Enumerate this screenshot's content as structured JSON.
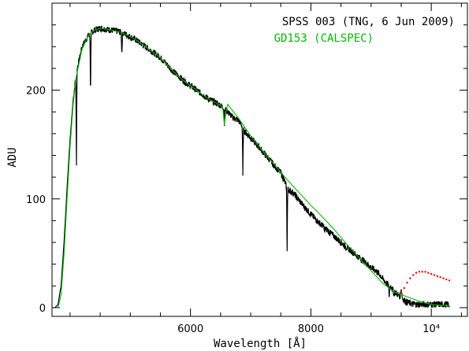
{
  "chart_data": {
    "type": "line",
    "xlabel": "Wavelength [Å]",
    "ylabel": "ADU",
    "xlim": [
      3700,
      10600
    ],
    "ylim": [
      -8,
      280
    ],
    "x_ticks": [
      {
        "value": 6000,
        "label": "6000"
      },
      {
        "value": 8000,
        "label": "8000"
      },
      {
        "value": 10000,
        "label": "10⁴"
      }
    ],
    "y_ticks": [
      {
        "value": 0,
        "label": "0"
      },
      {
        "value": 100,
        "label": "100"
      },
      {
        "value": 200,
        "label": "200"
      }
    ],
    "grid": false,
    "legend_position": "top-right",
    "series": [
      {
        "name": "SPSS 003 (TNG, 6 Jun 2009)",
        "color": "#000000",
        "style": "line",
        "x": [
          3750,
          3800,
          3850,
          3900,
          3950,
          4000,
          4050,
          4100,
          4200,
          4300,
          4400,
          4500,
          4600,
          4700,
          4800,
          4900,
          5000,
          5100,
          5200,
          5300,
          5400,
          5500,
          5600,
          5700,
          5800,
          5900,
          6000,
          6100,
          6200,
          6300,
          6400,
          6500,
          6520,
          6540,
          6563,
          6585,
          6600,
          6620,
          6650,
          6700,
          6800,
          6850,
          6870,
          6880,
          6890,
          6900,
          6950,
          7000,
          7100,
          7200,
          7250,
          7300,
          7400,
          7500,
          7550,
          7590,
          7605,
          7620,
          7640,
          7660,
          7700,
          7800,
          7900,
          8000,
          8100,
          8200,
          8300,
          8400,
          8500,
          8600,
          8700,
          8800,
          8900,
          9000,
          9100,
          9150,
          9200,
          9250,
          9300,
          9350,
          9400,
          9450,
          9500,
          9550,
          9600,
          9650,
          9700,
          9800,
          9900,
          10000,
          10100,
          10200,
          10300
        ],
        "y": [
          0,
          3,
          20,
          60,
          110,
          155,
          190,
          215,
          240,
          250,
          255,
          257,
          256,
          255,
          254,
          252,
          249,
          246,
          242,
          238,
          234,
          230,
          224,
          218,
          213,
          208,
          204,
          200,
          196,
          192,
          189,
          186,
          185,
          184,
          183,
          182,
          181,
          180,
          178,
          175,
          172,
          168,
          164,
          163,
          163,
          162,
          159,
          156,
          150,
          144,
          140,
          137,
          130,
          124,
          118,
          112,
          110,
          109,
          108,
          107,
          106,
          99,
          92,
          86,
          80,
          75,
          70,
          65,
          60,
          55,
          51,
          46,
          42,
          37,
          33,
          30,
          26,
          23,
          20,
          17,
          14,
          12,
          9,
          7,
          5,
          4,
          3,
          3,
          3,
          3,
          3,
          3,
          3
        ],
        "noise": 3,
        "dips": [
          {
            "x": 4105,
            "y": 120
          },
          {
            "x": 4340,
            "y": 190
          },
          {
            "x": 4860,
            "y": 230
          },
          {
            "x": 6563,
            "y": 168
          },
          {
            "x": 6870,
            "y": 120
          },
          {
            "x": 7190,
            "y": 142
          },
          {
            "x": 7605,
            "y": 45
          },
          {
            "x": 8230,
            "y": 68
          },
          {
            "x": 9300,
            "y": 8
          },
          {
            "x": 9380,
            "y": 10
          }
        ],
        "bumps": [
          {
            "x": 9330,
            "y": 20
          },
          {
            "x": 9500,
            "y": 18
          }
        ]
      },
      {
        "name": "GD153 (CALSPEC)",
        "color": "#00bb00",
        "style": "line",
        "x": [
          3800,
          3850,
          3900,
          3950,
          4000,
          4050,
          4100,
          4200,
          4300,
          4400,
          4500,
          4600,
          4700,
          4800,
          4900,
          5000,
          5100,
          5200,
          5300,
          5400,
          5500,
          5600,
          5700,
          5800,
          5900,
          6000,
          6100,
          6200,
          6300,
          6400,
          6500,
          6540,
          6563,
          6590,
          6620,
          6700,
          6800,
          6900,
          7000,
          7200,
          7400,
          7600,
          7800,
          8000,
          8200,
          8400,
          8600,
          8800,
          9000,
          9200,
          9400,
          9600,
          9800,
          10000,
          10200,
          10300
        ],
        "y": [
          0,
          12,
          50,
          100,
          148,
          186,
          212,
          238,
          250,
          255,
          257,
          256,
          255,
          254,
          252,
          249,
          246,
          242,
          238,
          234,
          230,
          224,
          218,
          213,
          208,
          204,
          200,
          196,
          192,
          189,
          186,
          182,
          168,
          180,
          187,
          181,
          174,
          166,
          158,
          144,
          131,
          118,
          106,
          94,
          83,
          71,
          58,
          46,
          34,
          22,
          14,
          10,
          6,
          3,
          2,
          2
        ]
      },
      {
        "name": "",
        "color": "#ff0000",
        "style": "dots",
        "x": [
          9500,
          9550,
          9600,
          9650,
          9700,
          9750,
          9800,
          9850,
          9900,
          9950,
          10000,
          10050,
          10100,
          10150,
          10200,
          10250,
          10300
        ],
        "y": [
          14,
          18,
          23,
          27,
          30,
          32,
          33,
          33,
          33,
          32,
          31,
          30,
          29,
          28,
          27,
          26,
          25
        ]
      }
    ]
  }
}
